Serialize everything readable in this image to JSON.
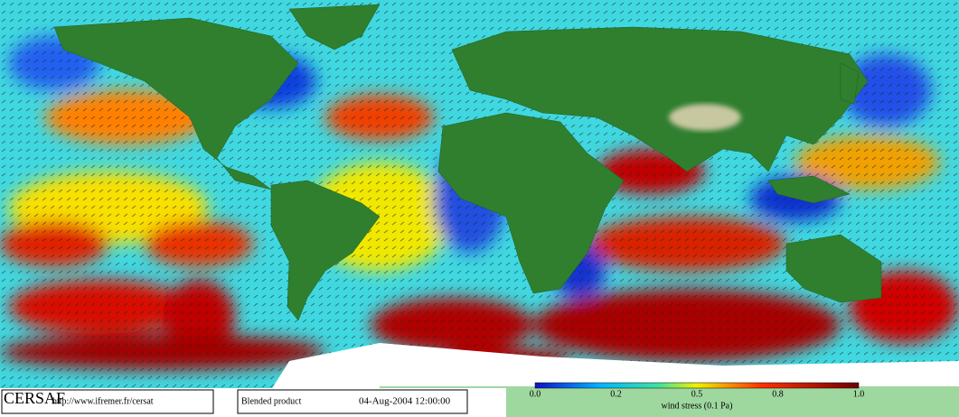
{
  "logo": "CERSAF",
  "url": "http://www.ifremer.fr/cersat",
  "product": "Blended product",
  "datetime": "04-Aug-2004 12:00:00",
  "colorbar": {
    "labels": [
      "0.0",
      "0.2",
      "0.5",
      "0.8",
      "1.0"
    ],
    "title": "wind stress (0.1 Pa)"
  }
}
